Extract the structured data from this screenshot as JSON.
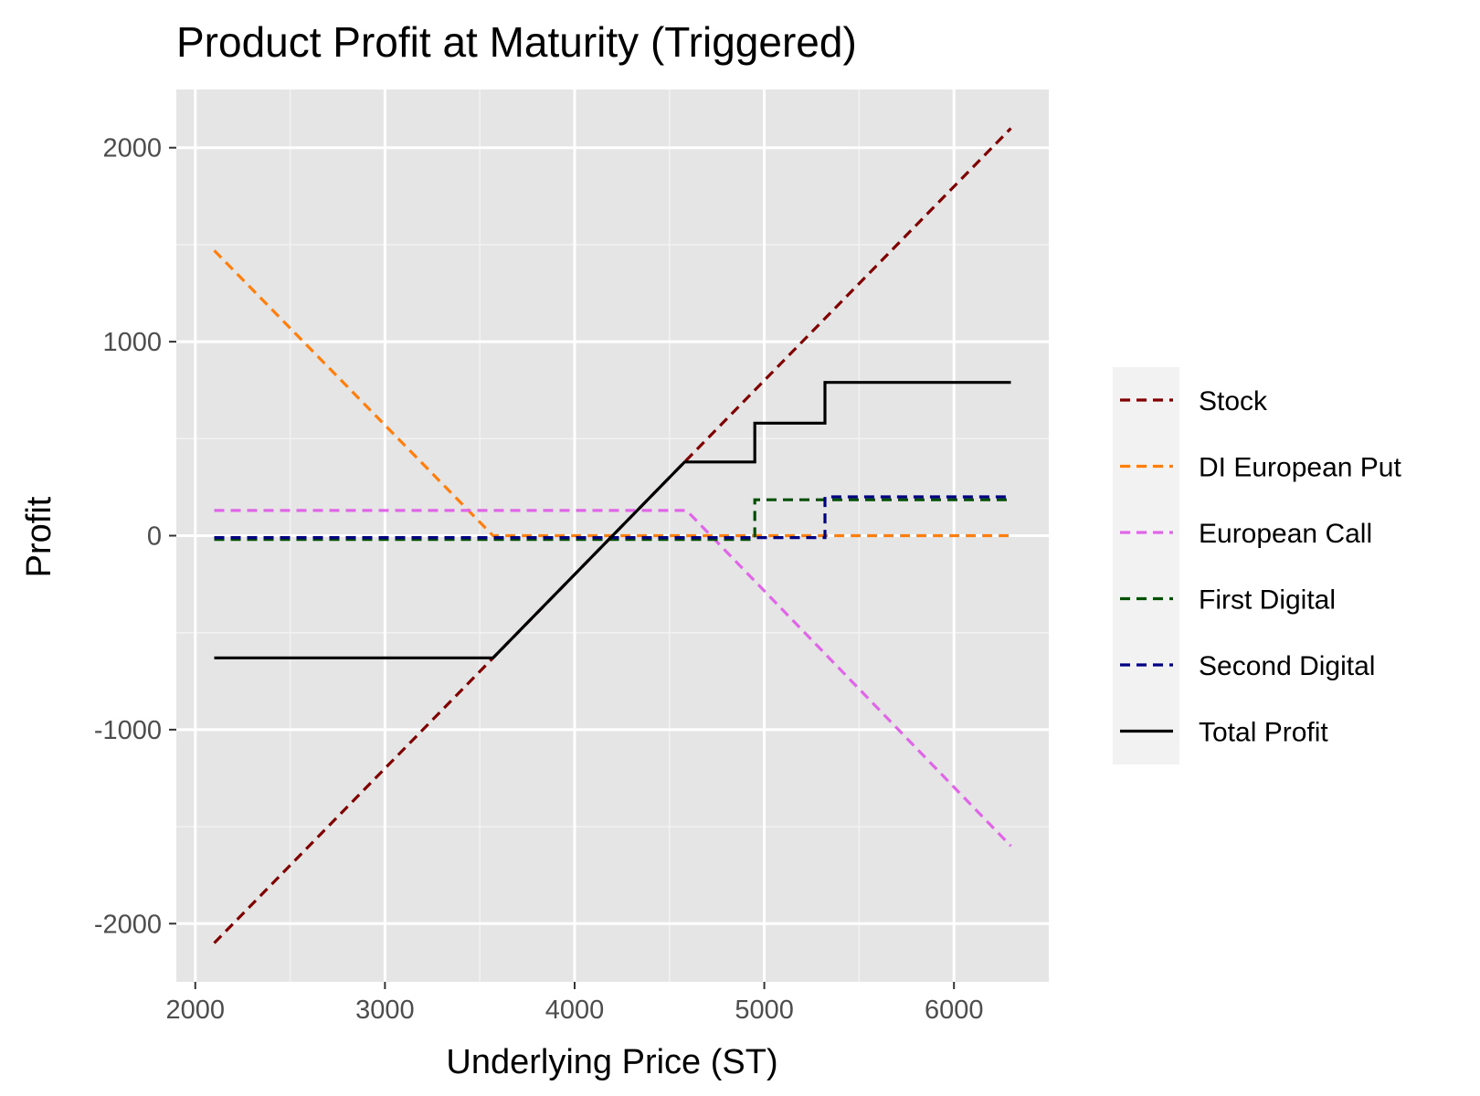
{
  "chart_data": {
    "type": "line",
    "title": "Product Profit at Maturity (Triggered)",
    "xlabel": "Underlying Price (ST)",
    "ylabel": "Profit",
    "xlim": [
      1900,
      6500
    ],
    "ylim": [
      -2300,
      2300
    ],
    "x_ticks": [
      2000,
      3000,
      4000,
      5000,
      6000
    ],
    "y_ticks": [
      -2000,
      -1000,
      0,
      1000,
      2000
    ],
    "y_tick_labels": [
      "-2000",
      "-1000",
      "0",
      "1000",
      "2000"
    ],
    "grid": true,
    "legend_position": "right",
    "series": [
      {
        "name": "Stock",
        "color": "#7f0000",
        "dash": "dashed",
        "points": [
          [
            2100,
            -2100
          ],
          [
            6300,
            2100
          ]
        ]
      },
      {
        "name": "DI European Put",
        "color": "#ff7f0e",
        "dash": "dashed",
        "points": [
          [
            2100,
            1470
          ],
          [
            3570,
            0
          ],
          [
            6300,
            0
          ]
        ]
      },
      {
        "name": "European Call",
        "color": "#e066e8",
        "dash": "dashed",
        "points": [
          [
            2100,
            130
          ],
          [
            4590,
            130
          ],
          [
            6300,
            -1600
          ]
        ]
      },
      {
        "name": "First Digital",
        "color": "#005000",
        "dash": "dashed",
        "points": [
          [
            2100,
            -20
          ],
          [
            4950,
            -20
          ],
          [
            4950,
            185
          ],
          [
            6300,
            185
          ]
        ]
      },
      {
        "name": "Second Digital",
        "color": "#000080",
        "dash": "dashed",
        "points": [
          [
            2100,
            -10
          ],
          [
            5320,
            -10
          ],
          [
            5320,
            200
          ],
          [
            6300,
            200
          ]
        ]
      },
      {
        "name": "Total Profit",
        "color": "#000000",
        "dash": "solid",
        "points": [
          [
            2100,
            -630
          ],
          [
            3570,
            -630
          ],
          [
            4580,
            380
          ],
          [
            4950,
            380
          ],
          [
            4950,
            580
          ],
          [
            5320,
            580
          ],
          [
            5320,
            790
          ],
          [
            6300,
            790
          ]
        ]
      }
    ]
  }
}
